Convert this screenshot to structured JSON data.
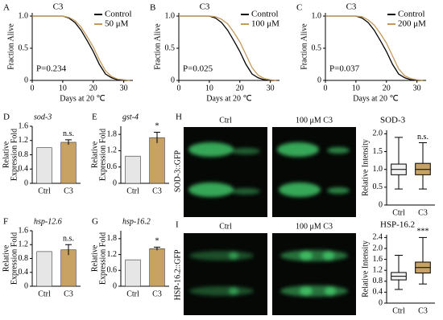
{
  "chart_data": [
    {
      "type": "line",
      "panel": "A",
      "title": "C3",
      "xlabel": "Days at 20 ℃",
      "ylabel": "Fraction Alive",
      "annotation": "P=0.234",
      "legend": "upper right",
      "x": [
        0,
        10,
        12,
        14,
        16,
        18,
        20,
        22,
        24,
        26,
        28,
        30,
        32
      ],
      "series": [
        {
          "name": "Control",
          "color": "#000000",
          "values": [
            1,
            1,
            0.97,
            0.9,
            0.78,
            0.62,
            0.45,
            0.25,
            0.1,
            0.04,
            0.01,
            0,
            0
          ]
        },
        {
          "name": "50 μM",
          "color": "#c49a5a",
          "values": [
            1,
            1,
            0.98,
            0.93,
            0.83,
            0.68,
            0.52,
            0.32,
            0.15,
            0.06,
            0.02,
            0.01,
            0
          ]
        }
      ],
      "xlim": [
        0,
        33
      ],
      "xticks": [
        0,
        10,
        20,
        30
      ],
      "ylim": [
        0,
        1.05
      ],
      "yticks": [
        0,
        0.5,
        {
          "value": 1,
          "label": "1.0"
        }
      ]
    },
    {
      "type": "line",
      "panel": "B",
      "title": "C3",
      "xlabel": "Days at 20 ℃",
      "ylabel": "Fraction Alive",
      "annotation": "P=0.025",
      "legend": "upper right",
      "x": [
        0,
        10,
        12,
        14,
        16,
        18,
        20,
        22,
        24,
        26,
        28,
        30,
        32
      ],
      "series": [
        {
          "name": "Control",
          "color": "#000000",
          "values": [
            1,
            1,
            0.97,
            0.9,
            0.78,
            0.62,
            0.45,
            0.25,
            0.1,
            0.04,
            0.01,
            0,
            0
          ]
        },
        {
          "name": "100 μM",
          "color": "#c49a5a",
          "values": [
            1,
            1,
            0.99,
            0.95,
            0.88,
            0.75,
            0.6,
            0.4,
            0.2,
            0.08,
            0.03,
            0.01,
            0
          ]
        }
      ],
      "xlim": [
        0,
        33
      ],
      "xticks": [
        0,
        10,
        20,
        30
      ],
      "ylim": [
        0,
        1.05
      ],
      "yticks": [
        0,
        0.5,
        {
          "value": 1,
          "label": "1.0"
        }
      ]
    },
    {
      "type": "line",
      "panel": "C",
      "title": "C3",
      "xlabel": "Days at 20 ℃",
      "ylabel": "Fraction Alive",
      "annotation": "P=0.037",
      "legend": "upper right",
      "x": [
        0,
        10,
        12,
        14,
        16,
        18,
        20,
        22,
        24,
        26,
        28,
        30,
        32
      ],
      "series": [
        {
          "name": "Control",
          "color": "#000000",
          "values": [
            1,
            1,
            0.97,
            0.9,
            0.78,
            0.62,
            0.45,
            0.25,
            0.1,
            0.04,
            0.01,
            0,
            0
          ]
        },
        {
          "name": "200 μM",
          "color": "#c49a5a",
          "values": [
            1,
            1,
            0.99,
            0.94,
            0.86,
            0.73,
            0.58,
            0.38,
            0.18,
            0.07,
            0.03,
            0.01,
            0
          ]
        }
      ],
      "xlim": [
        0,
        33
      ],
      "xticks": [
        0,
        10,
        20,
        30
      ],
      "ylim": [
        0,
        1.05
      ],
      "yticks": [
        0,
        0.5,
        {
          "value": 1,
          "label": "1.0"
        }
      ]
    },
    {
      "type": "bar",
      "panel": "D",
      "title": "sod-3",
      "ylabel": [
        "Relative",
        "Expression Fold"
      ],
      "categories": [
        "Ctrl",
        "C3"
      ],
      "values": [
        1,
        1.15
      ],
      "errors": [
        null,
        0.07
      ],
      "colors": [
        "#e6e6e6",
        "#c8a165"
      ],
      "ylim": [
        0,
        1.6
      ],
      "yticks": [
        0,
        0.4,
        0.8,
        1.2,
        1.6
      ],
      "annotation": "n.s."
    },
    {
      "type": "bar",
      "panel": "E",
      "title": "gst-4",
      "ylabel": [
        "Relative",
        "Expression Fold"
      ],
      "categories": [
        "Ctrl",
        "C3"
      ],
      "values": [
        1,
        1.68
      ],
      "errors": [
        null,
        0.2
      ],
      "colors": [
        "#e6e6e6",
        "#c8a165"
      ],
      "ylim": [
        0,
        2.1
      ],
      "yticks": [
        0,
        0.6,
        1.2,
        1.8
      ],
      "annotation": "*"
    },
    {
      "type": "bar",
      "panel": "F",
      "title": "hsp-12.6",
      "ylabel": [
        "Relative",
        "Expression Fold"
      ],
      "categories": [
        "Ctrl",
        "C3"
      ],
      "values": [
        1,
        1.05
      ],
      "errors": [
        null,
        0.15
      ],
      "colors": [
        "#e6e6e6",
        "#c8a165"
      ],
      "ylim": [
        0,
        1.6
      ],
      "yticks": [
        0,
        0.4,
        0.8,
        1.2,
        1.6
      ],
      "annotation": "n.s."
    },
    {
      "type": "bar",
      "panel": "G",
      "title": "hsp-16.2",
      "ylabel": [
        "Relative",
        "Expression Fold"
      ],
      "categories": [
        "Ctrl",
        "C3"
      ],
      "values": [
        1,
        1.42
      ],
      "errors": [
        null,
        0.06
      ],
      "colors": [
        "#e6e6e6",
        "#c8a165"
      ],
      "ylim": [
        0,
        2.1
      ],
      "yticks": [
        0,
        0.6,
        1.2,
        1.8
      ],
      "annotation": "*"
    },
    {
      "type": "box",
      "title": "SOD-3",
      "ylabel": "Relative Intensity",
      "categories": [
        "Ctrl",
        "C3"
      ],
      "boxes": [
        {
          "whislo": 0.45,
          "q1": 0.85,
          "med": 1.0,
          "q3": 1.15,
          "whishi": 1.9
        },
        {
          "whislo": 0.45,
          "q1": 0.85,
          "med": 1.0,
          "q3": 1.17,
          "whishi": 1.75
        }
      ],
      "colors": [
        "#f2f2f2",
        "#c8a165"
      ],
      "ylim": [
        0,
        2.1
      ],
      "yticks": [
        0,
        0.5,
        {
          "value": 1,
          "label": "1.0"
        },
        1.5,
        {
          "value": 2,
          "label": "2.0"
        }
      ],
      "annotation": "n.s."
    },
    {
      "type": "box",
      "title": "HSP-16.2",
      "ylabel": "Relative Intensity",
      "categories": [
        "Ctrl",
        "C3"
      ],
      "boxes": [
        {
          "whislo": 0.5,
          "q1": 0.85,
          "med": 0.98,
          "q3": 1.12,
          "whishi": 1.75
        },
        {
          "whislo": 0.7,
          "q1": 1.1,
          "med": 1.3,
          "q3": 1.5,
          "whishi": 2.4
        }
      ],
      "colors": [
        "#f2f2f2",
        "#c8a165"
      ],
      "ylim": [
        0,
        2.5
      ],
      "yticks": [
        0,
        0.4,
        0.8,
        1.2,
        1.6,
        {
          "value": 2,
          "label": "2.0"
        },
        2.4
      ],
      "annotation": "***"
    }
  ],
  "images": [
    {
      "panel": "H",
      "label": "SOD-3::GFP",
      "columns": [
        "Ctrl",
        "100 μM C3"
      ]
    },
    {
      "panel": "I",
      "label": "HSP-16.2::GFP",
      "columns": [
        "Ctrl",
        "100 μM C3"
      ]
    }
  ]
}
